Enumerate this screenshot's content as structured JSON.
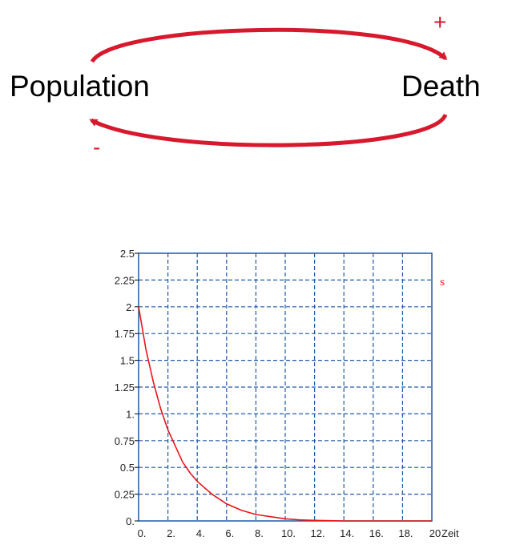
{
  "diagram": {
    "nodes": [
      {
        "id": "population",
        "label": "Population"
      },
      {
        "id": "death",
        "label": "Death"
      }
    ],
    "links": [
      {
        "from": "population",
        "to": "death",
        "polarity": "+"
      },
      {
        "from": "death",
        "to": "population",
        "polarity": "-"
      }
    ],
    "arrow_color": "#d7192d"
  },
  "chart_data": {
    "type": "line",
    "xlabel": "Zeit",
    "ylabel": "",
    "xlim": [
      0,
      20
    ],
    "ylim": [
      0,
      2.5
    ],
    "grid": true,
    "legend": [
      "s"
    ],
    "x_ticks": [
      "0.",
      "2.",
      "4.",
      "6.",
      "8.",
      "10.",
      "12.",
      "14.",
      "16.",
      "18.",
      "20"
    ],
    "y_ticks": [
      "0.",
      "0.25",
      "0.5",
      "0.75",
      "1.",
      "1.25",
      "1.5",
      "1.75",
      "2.",
      "2.25",
      "2.5"
    ],
    "series": [
      {
        "name": "s",
        "color": "#e8151b",
        "x": [
          0,
          0.5,
          1,
          1.5,
          2,
          2.5,
          3,
          3.5,
          4,
          5,
          6,
          7,
          8,
          9,
          10,
          11,
          12,
          14,
          16,
          18,
          20
        ],
        "y": [
          2.0,
          1.6,
          1.3,
          1.05,
          0.85,
          0.7,
          0.55,
          0.45,
          0.37,
          0.25,
          0.16,
          0.1,
          0.06,
          0.04,
          0.02,
          0.01,
          0.005,
          0.0,
          0.0,
          0.0,
          0.0
        ]
      }
    ],
    "axis_color": "#1f5aa6",
    "grid_color": "#1f5aa6"
  }
}
